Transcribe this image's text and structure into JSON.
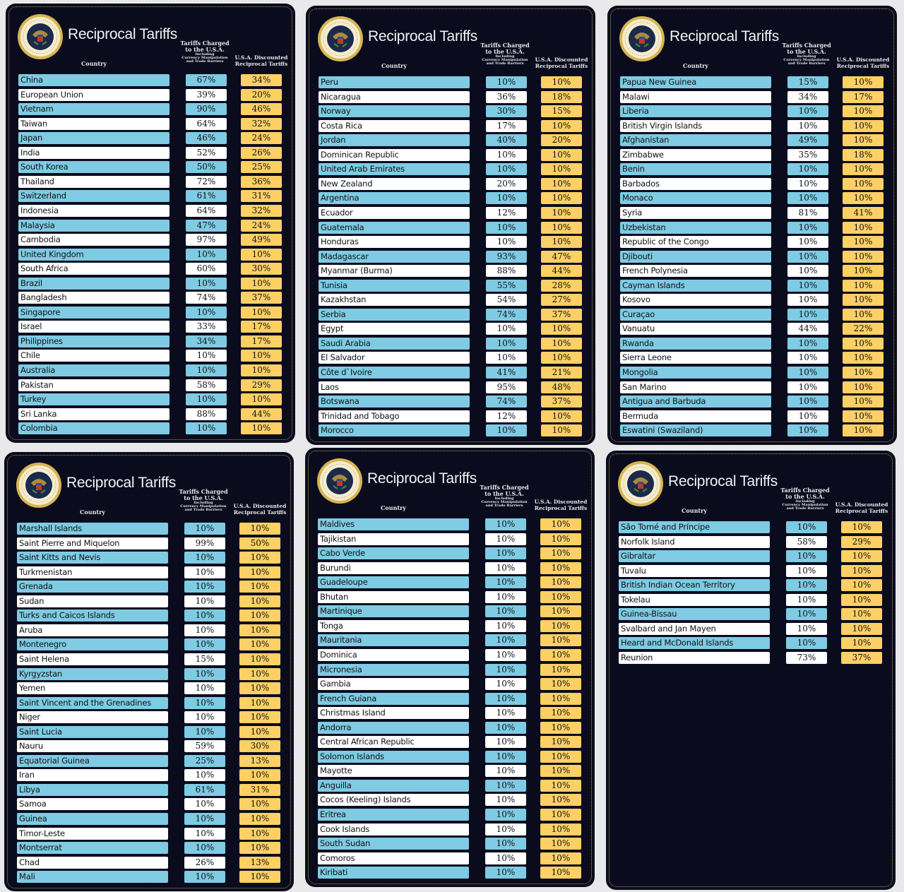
{
  "colors": {
    "background": "#0a0c1e",
    "blue_row": "#7ecbe3",
    "white_row": "#ffffff",
    "discount_cell": "#fdd065",
    "border": "#b39a52"
  },
  "headers": {
    "title": "Reciprocal Tariffs",
    "country": "Country",
    "charged_line1": "Tariffs Charged",
    "charged_line2": "to the U.S.A.",
    "charged_line3": "Including",
    "charged_line4": "Currency Manipulation",
    "charged_line5": "and Trade Barriers",
    "discounted_line1": "U.S.A. Discounted",
    "discounted_line2": "Reciprocal Tariffs"
  },
  "seal_text": "Seal of the President of the United States",
  "panels": [
    {
      "rows": [
        [
          "China",
          "67%",
          "34%"
        ],
        [
          "European Union",
          "39%",
          "20%"
        ],
        [
          "Vietnam",
          "90%",
          "46%"
        ],
        [
          "Taiwan",
          "64%",
          "32%"
        ],
        [
          "Japan",
          "46%",
          "24%"
        ],
        [
          "India",
          "52%",
          "26%"
        ],
        [
          "South Korea",
          "50%",
          "25%"
        ],
        [
          "Thailand",
          "72%",
          "36%"
        ],
        [
          "Switzerland",
          "61%",
          "31%"
        ],
        [
          "Indonesia",
          "64%",
          "32%"
        ],
        [
          "Malaysia",
          "47%",
          "24%"
        ],
        [
          "Cambodia",
          "97%",
          "49%"
        ],
        [
          "United Kingdom",
          "10%",
          "10%"
        ],
        [
          "South Africa",
          "60%",
          "30%"
        ],
        [
          "Brazil",
          "10%",
          "10%"
        ],
        [
          "Bangladesh",
          "74%",
          "37%"
        ],
        [
          "Singapore",
          "10%",
          "10%"
        ],
        [
          "Israel",
          "33%",
          "17%"
        ],
        [
          "Philippines",
          "34%",
          "17%"
        ],
        [
          "Chile",
          "10%",
          "10%"
        ],
        [
          "Australia",
          "10%",
          "10%"
        ],
        [
          "Pakistan",
          "58%",
          "29%"
        ],
        [
          "Turkey",
          "10%",
          "10%"
        ],
        [
          "Sri Lanka",
          "88%",
          "44%"
        ],
        [
          "Colombia",
          "10%",
          "10%"
        ]
      ]
    },
    {
      "rows": [
        [
          "Peru",
          "10%",
          "10%"
        ],
        [
          "Nicaragua",
          "36%",
          "18%"
        ],
        [
          "Norway",
          "30%",
          "15%"
        ],
        [
          "Costa Rica",
          "17%",
          "10%"
        ],
        [
          "Jordan",
          "40%",
          "20%"
        ],
        [
          "Dominican Republic",
          "10%",
          "10%"
        ],
        [
          "United Arab Emirates",
          "10%",
          "10%"
        ],
        [
          "New Zealand",
          "20%",
          "10%"
        ],
        [
          "Argentina",
          "10%",
          "10%"
        ],
        [
          "Ecuador",
          "12%",
          "10%"
        ],
        [
          "Guatemala",
          "10%",
          "10%"
        ],
        [
          "Honduras",
          "10%",
          "10%"
        ],
        [
          "Madagascar",
          "93%",
          "47%"
        ],
        [
          "Myanmar (Burma)",
          "88%",
          "44%"
        ],
        [
          "Tunisia",
          "55%",
          "28%"
        ],
        [
          "Kazakhstan",
          "54%",
          "27%"
        ],
        [
          "Serbia",
          "74%",
          "37%"
        ],
        [
          "Egypt",
          "10%",
          "10%"
        ],
        [
          "Saudi Arabia",
          "10%",
          "10%"
        ],
        [
          "El Salvador",
          "10%",
          "10%"
        ],
        [
          "Côte d`Ivoire",
          "41%",
          "21%"
        ],
        [
          "Laos",
          "95%",
          "48%"
        ],
        [
          "Botswana",
          "74%",
          "37%"
        ],
        [
          "Trinidad and Tobago",
          "12%",
          "10%"
        ],
        [
          "Morocco",
          "10%",
          "10%"
        ]
      ]
    },
    {
      "rows": [
        [
          "Papua New Guinea",
          "15%",
          "10%"
        ],
        [
          "Malawi",
          "34%",
          "17%"
        ],
        [
          "Liberia",
          "10%",
          "10%"
        ],
        [
          "British Virgin Islands",
          "10%",
          "10%"
        ],
        [
          "Afghanistan",
          "49%",
          "10%"
        ],
        [
          "Zimbabwe",
          "35%",
          "18%"
        ],
        [
          "Benin",
          "10%",
          "10%"
        ],
        [
          "Barbados",
          "10%",
          "10%"
        ],
        [
          "Monaco",
          "10%",
          "10%"
        ],
        [
          "Syria",
          "81%",
          "41%"
        ],
        [
          "Uzbekistan",
          "10%",
          "10%"
        ],
        [
          "Republic of the Congo",
          "10%",
          "10%"
        ],
        [
          "Djibouti",
          "10%",
          "10%"
        ],
        [
          "French Polynesia",
          "10%",
          "10%"
        ],
        [
          "Cayman Islands",
          "10%",
          "10%"
        ],
        [
          "Kosovo",
          "10%",
          "10%"
        ],
        [
          "Curaçao",
          "10%",
          "10%"
        ],
        [
          "Vanuatu",
          "44%",
          "22%"
        ],
        [
          "Rwanda",
          "10%",
          "10%"
        ],
        [
          "Sierra Leone",
          "10%",
          "10%"
        ],
        [
          "Mongolia",
          "10%",
          "10%"
        ],
        [
          "San Marino",
          "10%",
          "10%"
        ],
        [
          "Antigua and Barbuda",
          "10%",
          "10%"
        ],
        [
          "Bermuda",
          "10%",
          "10%"
        ],
        [
          "Eswatini (Swaziland)",
          "10%",
          "10%"
        ]
      ]
    },
    {
      "rows": [
        [
          "Marshall Islands",
          "10%",
          "10%"
        ],
        [
          "Saint Pierre and Miquelon",
          "99%",
          "50%"
        ],
        [
          "Saint Kitts and Nevis",
          "10%",
          "10%"
        ],
        [
          "Turkmenistan",
          "10%",
          "10%"
        ],
        [
          "Grenada",
          "10%",
          "10%"
        ],
        [
          "Sudan",
          "10%",
          "10%"
        ],
        [
          "Turks and Caicos Islands",
          "10%",
          "10%"
        ],
        [
          "Aruba",
          "10%",
          "10%"
        ],
        [
          "Montenegro",
          "10%",
          "10%"
        ],
        [
          "Saint Helena",
          "15%",
          "10%"
        ],
        [
          "Kyrgyzstan",
          "10%",
          "10%"
        ],
        [
          "Yemen",
          "10%",
          "10%"
        ],
        [
          "Saint Vincent and the Grenadines",
          "10%",
          "10%"
        ],
        [
          "Niger",
          "10%",
          "10%"
        ],
        [
          "Saint Lucia",
          "10%",
          "10%"
        ],
        [
          "Nauru",
          "59%",
          "30%"
        ],
        [
          "Equatorial Guinea",
          "25%",
          "13%"
        ],
        [
          "Iran",
          "10%",
          "10%"
        ],
        [
          "Libya",
          "61%",
          "31%"
        ],
        [
          "Samoa",
          "10%",
          "10%"
        ],
        [
          "Guinea",
          "10%",
          "10%"
        ],
        [
          "Timor-Leste",
          "10%",
          "10%"
        ],
        [
          "Montserrat",
          "10%",
          "10%"
        ],
        [
          "Chad",
          "26%",
          "13%"
        ],
        [
          "Mali",
          "10%",
          "10%"
        ]
      ]
    },
    {
      "rows": [
        [
          "Maldives",
          "10%",
          "10%"
        ],
        [
          "Tajikistan",
          "10%",
          "10%"
        ],
        [
          "Cabo Verde",
          "10%",
          "10%"
        ],
        [
          "Burundi",
          "10%",
          "10%"
        ],
        [
          "Guadeloupe",
          "10%",
          "10%"
        ],
        [
          "Bhutan",
          "10%",
          "10%"
        ],
        [
          "Martinique",
          "10%",
          "10%"
        ],
        [
          "Tonga",
          "10%",
          "10%"
        ],
        [
          "Mauritania",
          "10%",
          "10%"
        ],
        [
          "Dominica",
          "10%",
          "10%"
        ],
        [
          "Micronesia",
          "10%",
          "10%"
        ],
        [
          "Gambia",
          "10%",
          "10%"
        ],
        [
          "French Guiana",
          "10%",
          "10%"
        ],
        [
          "Christmas Island",
          "10%",
          "10%"
        ],
        [
          "Andorra",
          "10%",
          "10%"
        ],
        [
          "Central African Republic",
          "10%",
          "10%"
        ],
        [
          "Solomon Islands",
          "10%",
          "10%"
        ],
        [
          "Mayotte",
          "10%",
          "10%"
        ],
        [
          "Anguilla",
          "10%",
          "10%"
        ],
        [
          "Cocos (Keeling) Islands",
          "10%",
          "10%"
        ],
        [
          "Eritrea",
          "10%",
          "10%"
        ],
        [
          "Cook Islands",
          "10%",
          "10%"
        ],
        [
          "South Sudan",
          "10%",
          "10%"
        ],
        [
          "Comoros",
          "10%",
          "10%"
        ],
        [
          "Kiribati",
          "10%",
          "10%"
        ]
      ]
    },
    {
      "rows": [
        [
          "São Tomé and Príncipe",
          "10%",
          "10%"
        ],
        [
          "Norfolk Island",
          "58%",
          "29%"
        ],
        [
          "Gibraltar",
          "10%",
          "10%"
        ],
        [
          "Tuvalu",
          "10%",
          "10%"
        ],
        [
          "British Indian Ocean Territory",
          "10%",
          "10%"
        ],
        [
          "Tokelau",
          "10%",
          "10%"
        ],
        [
          "Guinea-Bissau",
          "10%",
          "10%"
        ],
        [
          "Svalbard and Jan Mayen",
          "10%",
          "10%"
        ],
        [
          "Heard and McDonald Islands",
          "10%",
          "10%"
        ],
        [
          "Reunion",
          "73%",
          "37%"
        ]
      ]
    }
  ]
}
